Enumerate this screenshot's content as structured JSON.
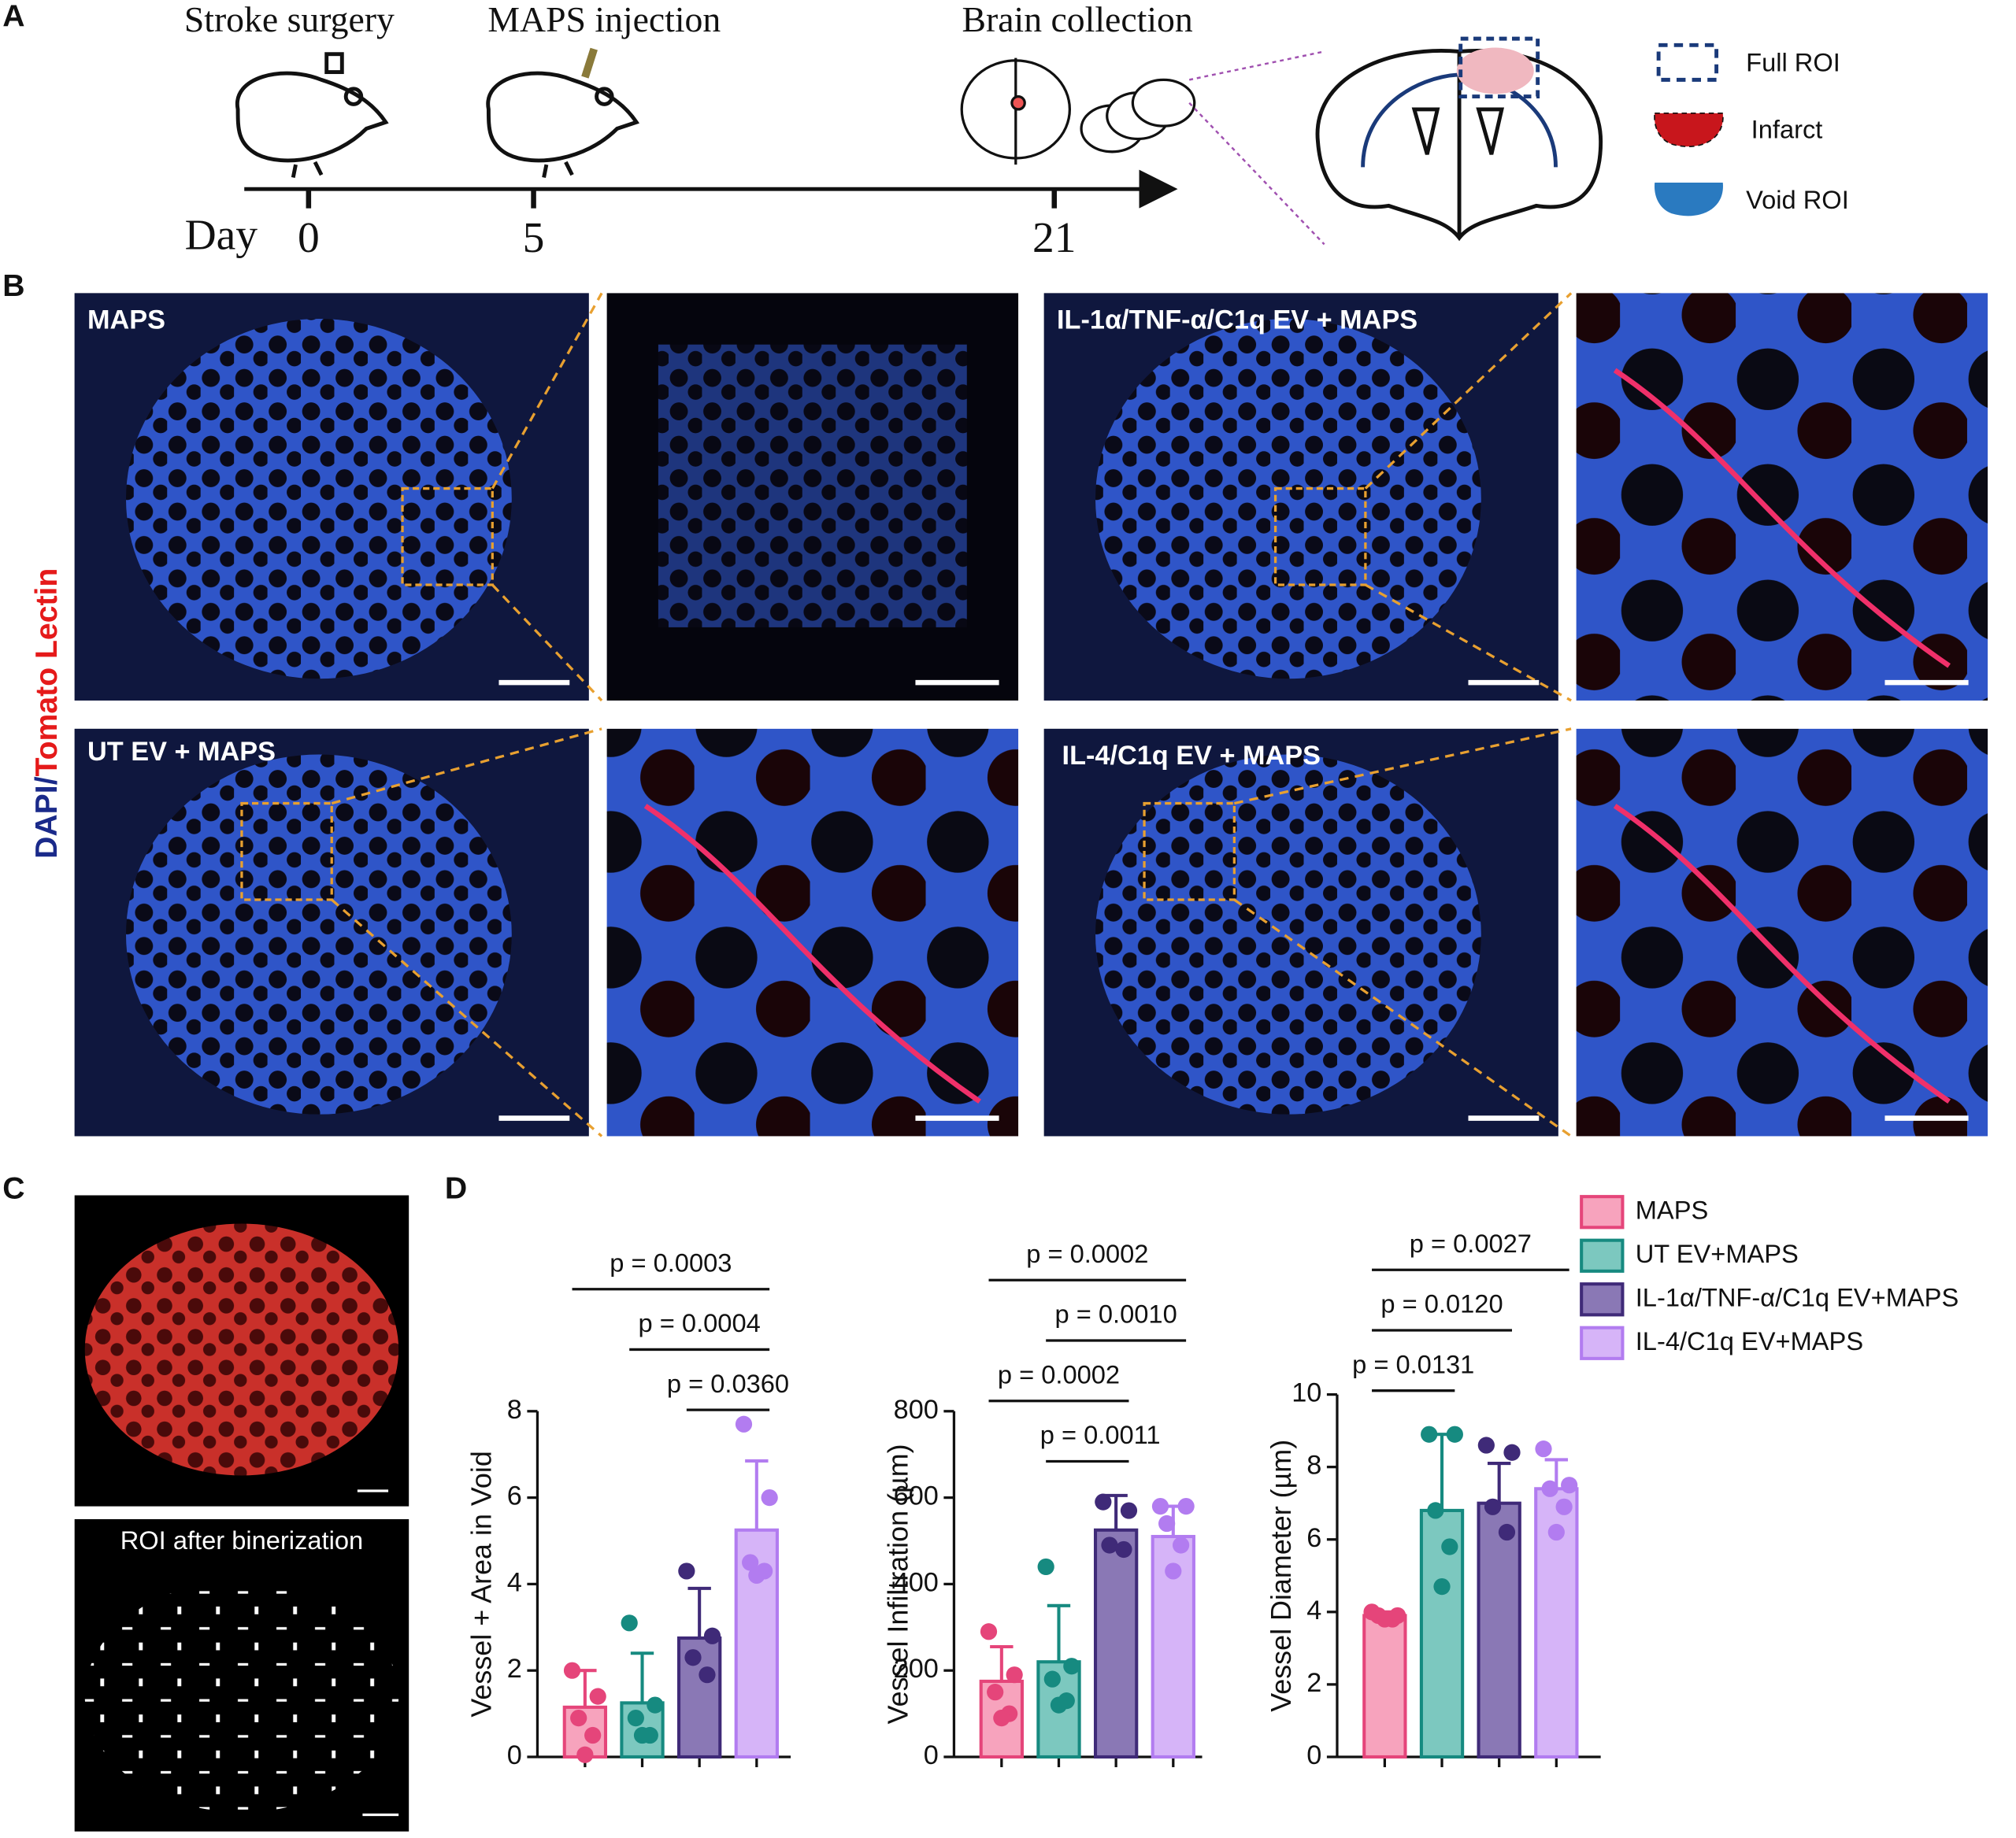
{
  "panel_labels": [
    "A",
    "B",
    "C",
    "D"
  ],
  "timeline": {
    "events": [
      "Stroke surgery",
      "MAPS injection",
      "Brain collection"
    ],
    "day_label": "Day",
    "days": [
      "0",
      "5",
      "21"
    ]
  },
  "roi_legend": [
    "Full ROI",
    "Infarct",
    "Void ROI"
  ],
  "stain_label": [
    "DAPI",
    "/",
    "Tomato Lectin"
  ],
  "image_labels": [
    "MAPS",
    "IL-1α/TNF-α/C1q EV + MAPS",
    "UT EV + MAPS",
    "IL-4/C1q EV + MAPS"
  ],
  "binarization_label": "ROI after binerization",
  "legend": [
    {
      "name": "MAPS",
      "color": "#e5457a",
      "fill": "#f7a3bd"
    },
    {
      "name": "UT EV+MAPS",
      "color": "#168a80",
      "fill": "#7cc8bf"
    },
    {
      "name": "IL-1α/TNF-α/C1q EV+MAPS",
      "color": "#3f2a78",
      "fill": "#8a78b5"
    },
    {
      "name": "IL-4/C1q EV+MAPS",
      "color": "#b27cf0",
      "fill": "#d6b4f8"
    }
  ],
  "chart_data": [
    {
      "type": "bar",
      "ylabel": "Vessel + Area in Void",
      "ylim": [
        0,
        8
      ],
      "yticks": [
        0,
        2,
        4,
        6,
        8
      ],
      "means": [
        1.15,
        1.25,
        2.75,
        5.25
      ],
      "errors": [
        0.85,
        1.15,
        1.15,
        1.6
      ],
      "points": [
        [
          2.0,
          1.4,
          0.9,
          0.5,
          0.05
        ],
        [
          3.1,
          1.2,
          0.9,
          0.5,
          0.5
        ],
        [
          4.3,
          2.8,
          2.3,
          1.9
        ],
        [
          7.7,
          6.0,
          4.5,
          4.3,
          4.2
        ]
      ],
      "comparisons": [
        {
          "from": 0,
          "to": 3,
          "label": "p = 0.0003"
        },
        {
          "from": 1,
          "to": 3,
          "label": "p = 0.0004"
        },
        {
          "from": 2,
          "to": 3,
          "label": "p = 0.0360"
        }
      ]
    },
    {
      "type": "bar",
      "ylabel": "Vessel Infiltration (µm)",
      "ylim": [
        0,
        800
      ],
      "yticks": [
        0,
        200,
        400,
        600,
        800
      ],
      "means": [
        175,
        220,
        525,
        510
      ],
      "errors": [
        80,
        130,
        80,
        70
      ],
      "points": [
        [
          290,
          190,
          150,
          100,
          90
        ],
        [
          440,
          210,
          180,
          130,
          120
        ],
        [
          590,
          570,
          490,
          480
        ],
        [
          580,
          580,
          540,
          490,
          430
        ]
      ],
      "comparisons": [
        {
          "from": 0,
          "to": 3,
          "label": "p = 0.0002"
        },
        {
          "from": 1,
          "to": 3,
          "label": "p = 0.0010"
        },
        {
          "from": 0,
          "to": 2,
          "label": "p = 0.0002"
        },
        {
          "from": 1,
          "to": 2,
          "label": "p = 0.0011"
        }
      ]
    },
    {
      "type": "bar",
      "ylabel": "Vessel Diameter (µm)",
      "ylim": [
        0,
        10
      ],
      "yticks": [
        0,
        2,
        4,
        6,
        8,
        10
      ],
      "means": [
        3.9,
        6.8,
        7.0,
        7.4
      ],
      "errors": [
        0.1,
        2.1,
        1.1,
        0.8
      ],
      "points": [
        [
          4.0,
          3.9,
          3.9,
          3.8,
          3.8
        ],
        [
          8.9,
          8.9,
          6.8,
          5.8,
          4.7
        ],
        [
          8.6,
          8.4,
          6.9,
          6.2
        ],
        [
          8.5,
          7.5,
          7.4,
          6.9,
          6.2
        ]
      ],
      "comparisons": [
        {
          "from": 0,
          "to": 3,
          "label": "p = 0.0027"
        },
        {
          "from": 0,
          "to": 2,
          "label": "p = 0.0120"
        },
        {
          "from": 0,
          "to": 1,
          "label": "p = 0.0131"
        }
      ]
    }
  ]
}
